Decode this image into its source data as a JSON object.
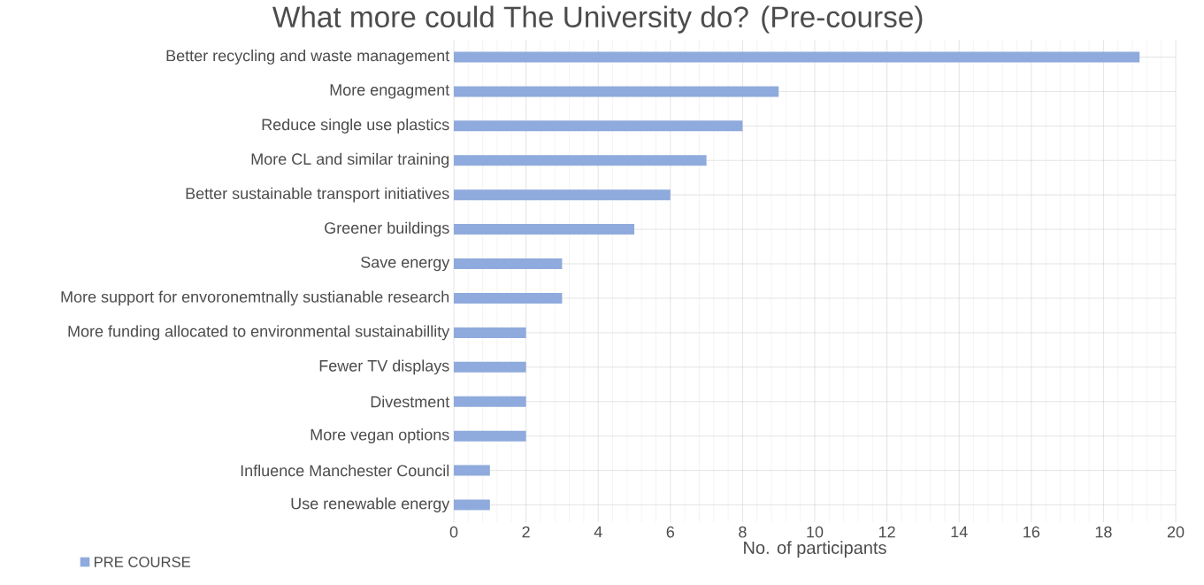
{
  "chart_data": {
    "type": "bar",
    "orientation": "horizontal",
    "title": "What more could The University do? (Pre-course)",
    "xlabel": "No. of participants",
    "categories": [
      "Better recycling and waste management",
      "More engagment",
      "Reduce single use plastics",
      "More CL and similar training",
      "Better sustainable transport initiatives",
      "Greener buildings",
      "Save energy",
      "More support for envoronemtnally sustianable research",
      "More funding allocated to environmental sustainabillity",
      "Fewer TV displays",
      "Divestment",
      "More vegan options",
      "Influence Manchester Council",
      "Use renewable energy"
    ],
    "series": [
      {
        "name": "PRE COURSE",
        "color": "#8faadc",
        "values": [
          19,
          9,
          8,
          7,
          6,
          5,
          3,
          3,
          2,
          2,
          2,
          2,
          1,
          1
        ]
      }
    ],
    "xlim": [
      0,
      20
    ],
    "xticks": [
      0,
      2,
      4,
      6,
      8,
      10,
      12,
      14,
      16,
      18,
      20
    ],
    "grid": true,
    "legend": "bottom left"
  }
}
